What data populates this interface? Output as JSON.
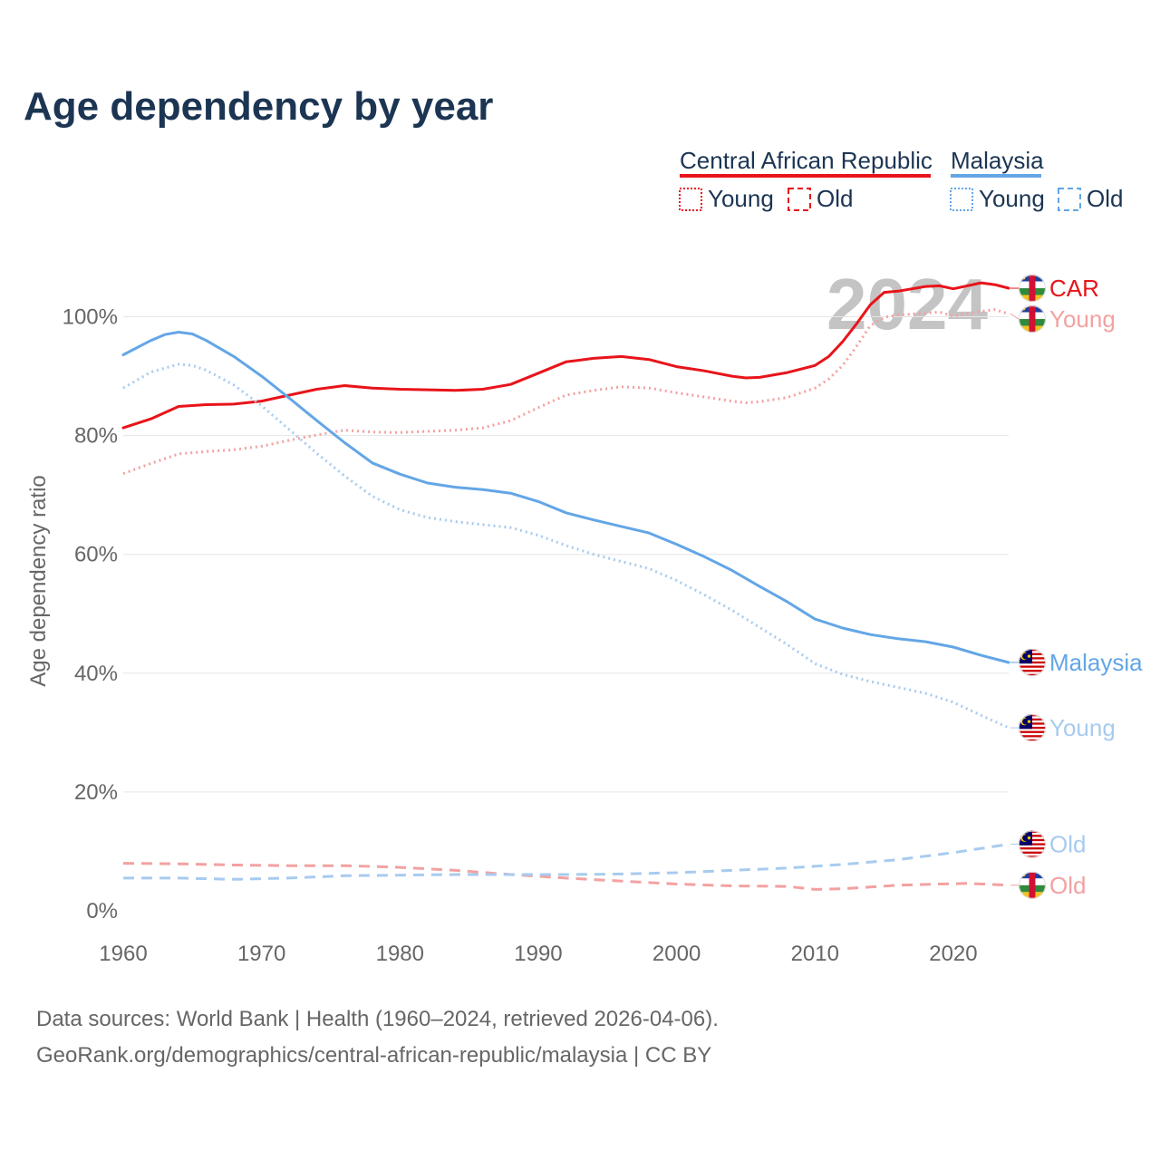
{
  "title": "Age dependency by year",
  "legend": {
    "country1": "Central African Republic",
    "country2": "Malaysia",
    "young_label": "Young",
    "old_label": "Old"
  },
  "year_watermark": "2024",
  "footer": {
    "line1": "Data sources: World Bank | Health (1960–2024, retrieved 2026-04-06).",
    "line2": "GeoRank.org/demographics/central-african-republic/malaysia | CC BY"
  },
  "colors": {
    "title": "#1c3553",
    "car": "#e8141a",
    "car_light": "#f3a1a1",
    "malaysia": "#63a6e6",
    "malaysia_light": "#a8cbef",
    "axis_text": "#666666",
    "grid": "#e6e6e6",
    "watermark": "#c4c4c4"
  },
  "chart_data": {
    "type": "line",
    "title": "Age dependency by year",
    "xlabel": "",
    "ylabel": "Age dependency ratio",
    "xlim": [
      1960,
      2024
    ],
    "ylim": [
      0,
      110
    ],
    "x_ticks": [
      1960,
      1970,
      1980,
      1990,
      2000,
      2010,
      2020
    ],
    "y_ticks": [
      0,
      20,
      40,
      60,
      80,
      100
    ],
    "y_tick_labels": [
      "0%",
      "20%",
      "40%",
      "60%",
      "80%",
      "100%"
    ],
    "grid": true,
    "series": [
      {
        "name": "Central African Republic",
        "group": "car",
        "variant": "total",
        "end_label": "CAR",
        "points": [
          [
            1960,
            81.3
          ],
          [
            1962,
            82.8
          ],
          [
            1964,
            84.9
          ],
          [
            1966,
            85.2
          ],
          [
            1968,
            85.3
          ],
          [
            1970,
            85.8
          ],
          [
            1972,
            86.8
          ],
          [
            1974,
            87.8
          ],
          [
            1976,
            88.4
          ],
          [
            1978,
            88.0
          ],
          [
            1980,
            87.8
          ],
          [
            1982,
            87.7
          ],
          [
            1984,
            87.6
          ],
          [
            1986,
            87.8
          ],
          [
            1988,
            88.6
          ],
          [
            1990,
            90.5
          ],
          [
            1992,
            92.4
          ],
          [
            1994,
            93.0
          ],
          [
            1996,
            93.3
          ],
          [
            1998,
            92.8
          ],
          [
            2000,
            91.6
          ],
          [
            2002,
            90.9
          ],
          [
            2004,
            90.0
          ],
          [
            2005,
            89.7
          ],
          [
            2006,
            89.8
          ],
          [
            2008,
            90.6
          ],
          [
            2010,
            91.8
          ],
          [
            2011,
            93.3
          ],
          [
            2012,
            95.8
          ],
          [
            2013,
            98.8
          ],
          [
            2014,
            102.0
          ],
          [
            2015,
            104.1
          ],
          [
            2016,
            104.3
          ],
          [
            2018,
            105.1
          ],
          [
            2019,
            105.2
          ],
          [
            2020,
            104.7
          ],
          [
            2022,
            105.7
          ],
          [
            2023,
            105.4
          ],
          [
            2024,
            104.8
          ]
        ]
      },
      {
        "name": "Central African Republic",
        "group": "car",
        "variant": "young",
        "end_label": "Young",
        "points": [
          [
            1960,
            73.6
          ],
          [
            1962,
            75.3
          ],
          [
            1964,
            76.9
          ],
          [
            1966,
            77.3
          ],
          [
            1968,
            77.6
          ],
          [
            1970,
            78.2
          ],
          [
            1972,
            79.2
          ],
          [
            1974,
            80.1
          ],
          [
            1976,
            80.9
          ],
          [
            1978,
            80.6
          ],
          [
            1980,
            80.5
          ],
          [
            1982,
            80.7
          ],
          [
            1984,
            80.9
          ],
          [
            1986,
            81.3
          ],
          [
            1988,
            82.5
          ],
          [
            1990,
            84.7
          ],
          [
            1992,
            86.8
          ],
          [
            1994,
            87.6
          ],
          [
            1996,
            88.2
          ],
          [
            1998,
            88.0
          ],
          [
            2000,
            87.2
          ],
          [
            2002,
            86.5
          ],
          [
            2004,
            85.8
          ],
          [
            2005,
            85.5
          ],
          [
            2006,
            85.7
          ],
          [
            2008,
            86.4
          ],
          [
            2010,
            88.0
          ],
          [
            2011,
            89.5
          ],
          [
            2012,
            91.8
          ],
          [
            2013,
            95.0
          ],
          [
            2014,
            98.5
          ],
          [
            2015,
            99.9
          ],
          [
            2016,
            100.3
          ],
          [
            2018,
            100.6
          ],
          [
            2019,
            100.8
          ],
          [
            2020,
            100.1
          ],
          [
            2022,
            100.9
          ],
          [
            2023,
            101.2
          ],
          [
            2024,
            100.5
          ]
        ]
      },
      {
        "name": "Central African Republic",
        "group": "car",
        "variant": "old",
        "end_label": "Old",
        "points": [
          [
            1960,
            8.0
          ],
          [
            1964,
            7.9
          ],
          [
            1968,
            7.7
          ],
          [
            1972,
            7.6
          ],
          [
            1976,
            7.6
          ],
          [
            1980,
            7.3
          ],
          [
            1984,
            6.8
          ],
          [
            1988,
            6.1
          ],
          [
            1992,
            5.5
          ],
          [
            1996,
            5.0
          ],
          [
            2000,
            4.5
          ],
          [
            2004,
            4.2
          ],
          [
            2008,
            4.1
          ],
          [
            2010,
            3.6
          ],
          [
            2012,
            3.7
          ],
          [
            2014,
            4.0
          ],
          [
            2016,
            4.3
          ],
          [
            2019,
            4.5
          ],
          [
            2021,
            4.6
          ],
          [
            2024,
            4.3
          ]
        ]
      },
      {
        "name": "Malaysia",
        "group": "mys",
        "variant": "total",
        "end_label": "Malaysia",
        "points": [
          [
            1960,
            93.6
          ],
          [
            1962,
            96.0
          ],
          [
            1963,
            97.0
          ],
          [
            1964,
            97.4
          ],
          [
            1965,
            97.1
          ],
          [
            1966,
            96.0
          ],
          [
            1968,
            93.3
          ],
          [
            1970,
            90.0
          ],
          [
            1972,
            86.3
          ],
          [
            1974,
            82.5
          ],
          [
            1976,
            78.8
          ],
          [
            1978,
            75.4
          ],
          [
            1980,
            73.5
          ],
          [
            1982,
            72.0
          ],
          [
            1984,
            71.3
          ],
          [
            1986,
            70.9
          ],
          [
            1988,
            70.3
          ],
          [
            1990,
            68.9
          ],
          [
            1992,
            67.0
          ],
          [
            1994,
            65.8
          ],
          [
            1996,
            64.7
          ],
          [
            1998,
            63.6
          ],
          [
            2000,
            61.7
          ],
          [
            2002,
            59.6
          ],
          [
            2004,
            57.3
          ],
          [
            2006,
            54.6
          ],
          [
            2008,
            52.0
          ],
          [
            2010,
            49.1
          ],
          [
            2012,
            47.6
          ],
          [
            2014,
            46.5
          ],
          [
            2016,
            45.8
          ],
          [
            2018,
            45.3
          ],
          [
            2020,
            44.4
          ],
          [
            2022,
            43.0
          ],
          [
            2024,
            41.8
          ]
        ]
      },
      {
        "name": "Malaysia",
        "group": "mys",
        "variant": "young",
        "end_label": "Young",
        "points": [
          [
            1960,
            88.0
          ],
          [
            1962,
            90.7
          ],
          [
            1964,
            92.0
          ],
          [
            1965,
            91.8
          ],
          [
            1966,
            91.0
          ],
          [
            1968,
            88.5
          ],
          [
            1970,
            85.0
          ],
          [
            1972,
            81.0
          ],
          [
            1974,
            77.0
          ],
          [
            1976,
            73.2
          ],
          [
            1978,
            69.8
          ],
          [
            1980,
            67.5
          ],
          [
            1982,
            66.2
          ],
          [
            1984,
            65.5
          ],
          [
            1986,
            65.0
          ],
          [
            1988,
            64.5
          ],
          [
            1990,
            63.2
          ],
          [
            1992,
            61.5
          ],
          [
            1994,
            60.0
          ],
          [
            1996,
            58.8
          ],
          [
            1998,
            57.6
          ],
          [
            2000,
            55.6
          ],
          [
            2002,
            53.2
          ],
          [
            2004,
            50.6
          ],
          [
            2006,
            47.7
          ],
          [
            2008,
            44.8
          ],
          [
            2010,
            41.6
          ],
          [
            2012,
            39.8
          ],
          [
            2014,
            38.6
          ],
          [
            2016,
            37.6
          ],
          [
            2018,
            36.6
          ],
          [
            2020,
            35.1
          ],
          [
            2022,
            32.9
          ],
          [
            2024,
            30.8
          ]
        ]
      },
      {
        "name": "Malaysia",
        "group": "mys",
        "variant": "old",
        "end_label": "Old",
        "points": [
          [
            1960,
            5.5
          ],
          [
            1964,
            5.5
          ],
          [
            1968,
            5.3
          ],
          [
            1972,
            5.5
          ],
          [
            1976,
            5.9
          ],
          [
            1980,
            6.0
          ],
          [
            1984,
            6.1
          ],
          [
            1988,
            6.1
          ],
          [
            1992,
            6.1
          ],
          [
            1996,
            6.2
          ],
          [
            2000,
            6.4
          ],
          [
            2004,
            6.8
          ],
          [
            2008,
            7.2
          ],
          [
            2012,
            7.8
          ],
          [
            2016,
            8.6
          ],
          [
            2020,
            9.8
          ],
          [
            2024,
            11.2
          ]
        ]
      }
    ]
  }
}
